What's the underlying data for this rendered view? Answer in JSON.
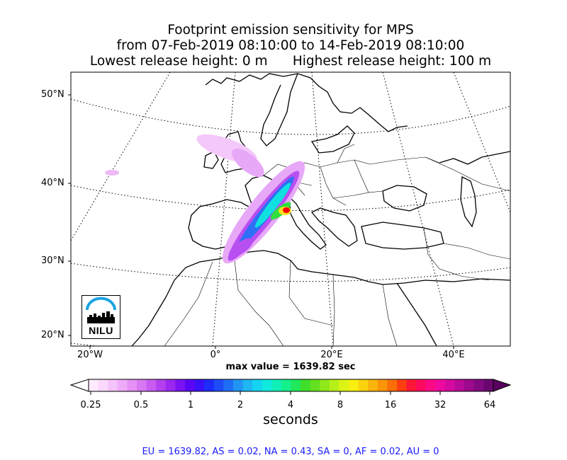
{
  "title": {
    "line1": "Footprint emission sensitivity for MPS",
    "line2": "from 07-Feb-2019 08:10:00 to 14-Feb-2019 08:10:00",
    "line3": "Lowest release height: 0 m      Highest release height: 100 m"
  },
  "map": {
    "lat_labels": [
      "50°N",
      "40°N",
      "30°N",
      "20°N"
    ],
    "lon_labels": [
      "20°W",
      "0°",
      "20°E",
      "40°E"
    ],
    "max_value": "max value = 1639.82 sec"
  },
  "logo": {
    "text": "NILU",
    "color": "#1aa3e0"
  },
  "colorbar": {
    "ticks": [
      "0.25",
      "0.5",
      "1",
      "2",
      "4",
      "8",
      "16",
      "32",
      "64"
    ],
    "label": "seconds"
  },
  "stats": "EU = 1639.82,  AS = 0.02,  NA = 0.43,  SA = 0,  AF = 0.02,  AU = 0",
  "colors": {
    "stats_text": "#1a1aff",
    "plume_peak": "#ff0000",
    "plume_low": "#e8a8f8"
  }
}
